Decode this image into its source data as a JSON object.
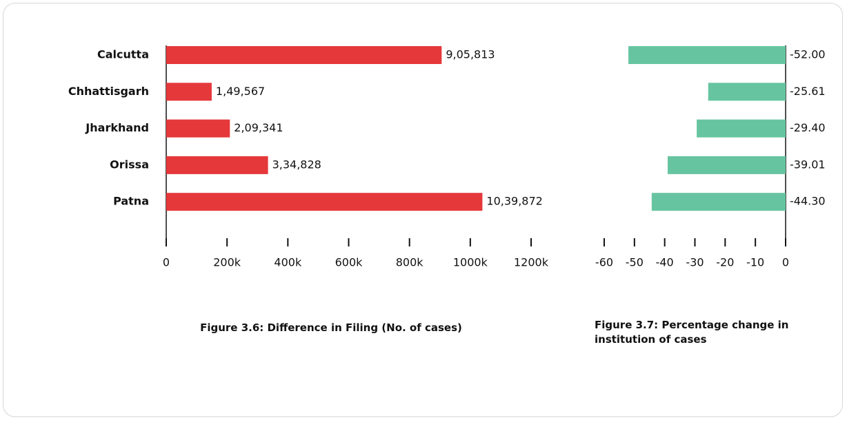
{
  "chart_data": [
    {
      "type": "hbar",
      "title": "Figure 3.6: Difference in Filing (No. of cases)",
      "categories": [
        "Calcutta",
        "Chhattisgarh",
        "Jharkhand",
        "Orissa",
        "Patna"
      ],
      "values": [
        905813,
        149567,
        209341,
        334828,
        1039872
      ],
      "value_labels": [
        "9,05,813",
        "1,49,567",
        "2,09,341",
        "3,34,828",
        "10,39,872"
      ],
      "color": "#e5383b",
      "xlim": [
        0,
        1200000
      ],
      "xticks": [
        0,
        {
          "value": 200000,
          "label": "200k"
        },
        {
          "value": 400000,
          "label": "400k"
        },
        {
          "value": 600000,
          "label": "600k"
        },
        {
          "value": 800000,
          "label": "800k"
        },
        {
          "value": 1000000,
          "label": "1000k"
        },
        {
          "value": 1200000,
          "label": "1200k"
        }
      ]
    },
    {
      "type": "hbar",
      "title": "Figure 3.7: Percentage change in institution of cases",
      "values": [
        -52,
        -25.61,
        -29.4,
        -39.01,
        -44.3
      ],
      "value_labels": [
        "-52.00",
        "-25.61",
        "-29.40",
        "-39.01",
        "-44.30"
      ],
      "color": "#66c5a0",
      "xlim": [
        -60,
        0
      ],
      "xticks": [
        -60,
        -50,
        -40,
        -30,
        -20,
        -10,
        0
      ]
    }
  ]
}
